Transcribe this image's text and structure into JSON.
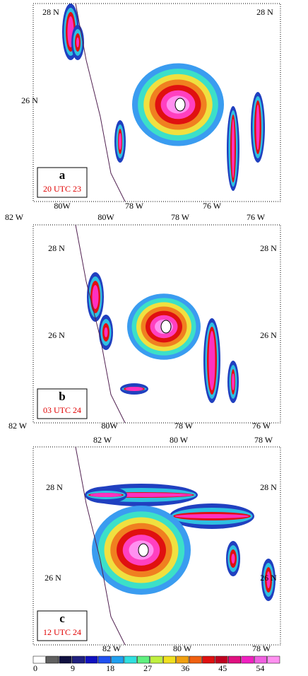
{
  "panels": [
    {
      "label": "a",
      "time": "20 UTC 23",
      "map_labels": [
        "28 N",
        "28 N",
        "26 N",
        "80W",
        "78 W",
        "76 W"
      ]
    },
    {
      "label": "b",
      "time": "03 UTC 24",
      "map_labels": [
        "82 W",
        "80W",
        "78 W",
        "76 W",
        "28 N",
        "28 N",
        "26 N",
        "26 N",
        "82 W",
        "80W",
        "78 W",
        "76 W"
      ]
    },
    {
      "label": "c",
      "time": "12 UTC 24",
      "map_labels": [
        "82 W",
        "80 W",
        "78 W",
        "28 N",
        "28 N",
        "26 N",
        "26 N",
        "82 W",
        "80 W",
        "78 W"
      ]
    }
  ],
  "colorbar": {
    "ticks": [
      0,
      9,
      18,
      27,
      36,
      45,
      54
    ]
  }
}
